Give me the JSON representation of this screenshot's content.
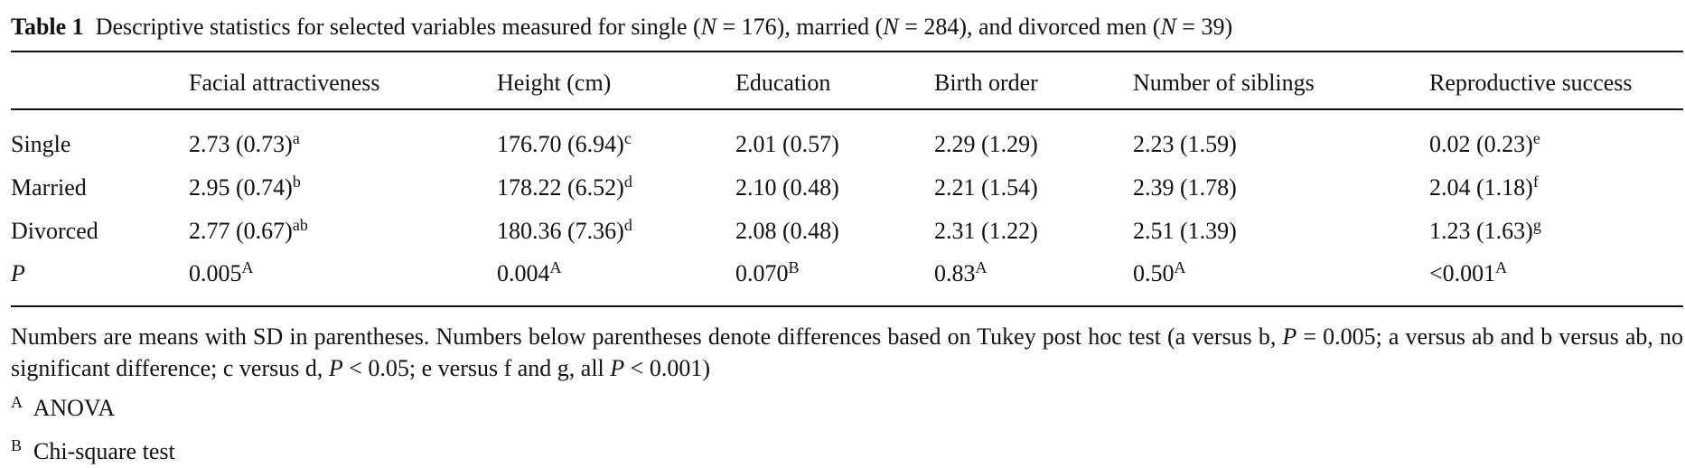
{
  "table_label": "Table 1",
  "caption": [
    {
      "text": "Descriptive statistics for selected variables measured for single ("
    },
    {
      "text": "N",
      "italic": true
    },
    {
      "text": " = 176), married ("
    },
    {
      "text": "N",
      "italic": true
    },
    {
      "text": " = 284), and divorced men ("
    },
    {
      "text": "N",
      "italic": true
    },
    {
      "text": " = 39)"
    }
  ],
  "table": {
    "header": [
      "Facial attractiveness",
      "Height (cm)",
      "Education",
      "Birth order",
      "Number of siblings",
      "Reproductive success"
    ],
    "rows": [
      {
        "label": "Single",
        "cells": [
          {
            "text": "2.73 (0.73)",
            "sup": "a"
          },
          {
            "text": "176.70 (6.94)",
            "sup": "c"
          },
          {
            "text": "2.01 (0.57)"
          },
          {
            "text": "2.29 (1.29)"
          },
          {
            "text": "2.23 (1.59)"
          },
          {
            "text": "0.02 (0.23)",
            "sup": "e"
          }
        ]
      },
      {
        "label": "Married",
        "cells": [
          {
            "text": "2.95 (0.74)",
            "sup": "b"
          },
          {
            "text": "178.22 (6.52)",
            "sup": "d"
          },
          {
            "text": "2.10 (0.48)"
          },
          {
            "text": "2.21 (1.54)"
          },
          {
            "text": "2.39 (1.78)"
          },
          {
            "text": "2.04 (1.18)",
            "sup": "f"
          }
        ]
      },
      {
        "label": "Divorced",
        "cells": [
          {
            "text": "2.77 (0.67)",
            "sup": "ab"
          },
          {
            "text": "180.36 (7.36)",
            "sup": "d"
          },
          {
            "text": "2.08 (0.48)"
          },
          {
            "text": "2.31 (1.22)"
          },
          {
            "text": "2.51 (1.39)"
          },
          {
            "text": "1.23 (1.63)",
            "sup": "g"
          }
        ]
      },
      {
        "label": "P",
        "cells": [
          {
            "text": "0.005",
            "sup": "A"
          },
          {
            "text": "0.004",
            "sup": "A"
          },
          {
            "text": "0.070",
            "sup": "B"
          },
          {
            "text": "0.83",
            "sup": "A"
          },
          {
            "text": "0.50",
            "sup": "A"
          },
          {
            "text": "<0.001",
            "sup": "A"
          }
        ]
      }
    ]
  },
  "footnote": [
    {
      "text": "Numbers are means with SD in parentheses. Numbers below parentheses denote differences based on Tukey post hoc test (a versus b, "
    },
    {
      "text": "P",
      "italic": true
    },
    {
      "text": " = 0.005; a versus ab and b versus ab, no significant difference; c versus d, "
    },
    {
      "text": "P",
      "italic": true
    },
    {
      "text": " < 0.05; e versus f and g, all "
    },
    {
      "text": "P",
      "italic": true
    },
    {
      "text": " < 0.001)"
    }
  ],
  "notes": [
    {
      "mark": "A",
      "text": "ANOVA"
    },
    {
      "mark": "B",
      "text": "Chi-square test"
    }
  ]
}
